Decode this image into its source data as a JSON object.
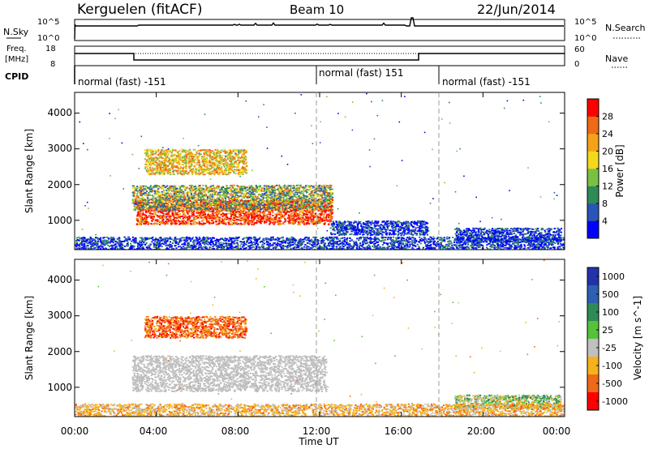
{
  "header": {
    "station": "Kerguelen (fitACF)",
    "beam": "Beam 10",
    "date": "22/Jun/2014"
  },
  "top_panels": {
    "nsky_label": "N.Sky",
    "nsky_ticks": [
      "10^5",
      "10^0"
    ],
    "nsearch_label": "N.Search",
    "nsearch_ticks": [
      "10^5",
      "10^0"
    ],
    "freq_label_1": "Freq.",
    "freq_label_2": "[MHz]",
    "freq_ticks": [
      "18",
      "8"
    ],
    "nave_label": "Nave",
    "nave_ticks": [
      "60",
      "0"
    ],
    "cpid_label": "CPID"
  },
  "chart_data": [
    {
      "type": "heatmap",
      "name": "power-panel",
      "ylabel": "Slant Range [km]",
      "xlabel": "",
      "x_ticks": [
        "00:00",
        "04:00",
        "08:00",
        "12:00",
        "16:00",
        "20:00",
        "00:00"
      ],
      "x_tick_hours": [
        0,
        4,
        8,
        12,
        16,
        20,
        24
      ],
      "xlim_hours": [
        0,
        24
      ],
      "y_ticks": [
        1000,
        2000,
        3000,
        4000
      ],
      "ylim": [
        180,
        4580
      ],
      "colorbar": {
        "label": "Power [dB]",
        "ticks": [
          4,
          8,
          12,
          16,
          20,
          24,
          28
        ],
        "range": [
          0,
          32
        ],
        "colors": [
          "#0000ff",
          "#2a55b6",
          "#2e8b57",
          "#7ac143",
          "#f2d91a",
          "#f6a11a",
          "#ef6a16",
          "#ff0000"
        ]
      },
      "cpid_segments": [
        {
          "label": "normal (fast) -151",
          "start_hour": 0
        },
        {
          "label": "normal (fast) 151",
          "start_hour": 12
        },
        {
          "label": "normal (fast) -151",
          "start_hour": 18
        }
      ],
      "regions": [
        {
          "x": [
            0,
            24
          ],
          "y": [
            180,
            550
          ],
          "value": 6,
          "desc": "near-range scatter"
        },
        {
          "x": [
            3.0,
            12.6
          ],
          "y": [
            900,
            1600
          ],
          "value": 28,
          "desc": "main echo band"
        },
        {
          "x": [
            2.8,
            12.6
          ],
          "y": [
            1300,
            2000
          ],
          "value": 14
        },
        {
          "x": [
            3.4,
            8.4
          ],
          "y": [
            2300,
            3000
          ],
          "value": 20
        },
        {
          "x": [
            12.5,
            17.3
          ],
          "y": [
            600,
            1000
          ],
          "value": 6
        },
        {
          "x": [
            18.6,
            23.8
          ],
          "y": [
            400,
            800
          ],
          "value": 6
        }
      ]
    },
    {
      "type": "heatmap",
      "name": "velocity-panel",
      "ylabel": "Slant Range [km]",
      "xlabel": "Time UT",
      "x_ticks": [
        "00:00",
        "04:00",
        "08:00",
        "12:00",
        "16:00",
        "20:00",
        "00:00"
      ],
      "x_tick_hours": [
        0,
        4,
        8,
        12,
        16,
        20,
        24
      ],
      "xlim_hours": [
        0,
        24
      ],
      "y_ticks": [
        1000,
        2000,
        3000,
        4000
      ],
      "ylim": [
        180,
        4580
      ],
      "colorbar": {
        "label": "Velocity [m s^-1]",
        "ticks": [
          "1000",
          "500",
          "100",
          "25",
          "-25",
          "-100",
          "-500",
          "-1000"
        ],
        "colors": [
          "#2233aa",
          "#2e5fb0",
          "#2e8b57",
          "#55c23a",
          "#c0c0c0",
          "#f6b21a",
          "#ef6a16",
          "#ff0000"
        ]
      },
      "regions": [
        {
          "x": [
            2.8,
            12.3
          ],
          "y": [
            900,
            1900
          ],
          "value": "ground scatter"
        },
        {
          "x": [
            3.4,
            8.4
          ],
          "y": [
            2400,
            3000
          ],
          "value": -300
        },
        {
          "x": [
            18.6,
            23.8
          ],
          "y": [
            400,
            800
          ],
          "value": 150
        },
        {
          "x": [
            0,
            24
          ],
          "y": [
            180,
            550
          ],
          "value": -150
        }
      ]
    }
  ]
}
